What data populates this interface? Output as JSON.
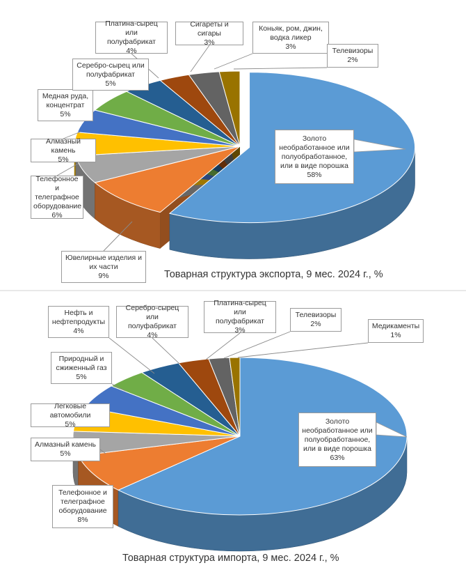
{
  "chart_data": [
    {
      "type": "pie",
      "title": "Товарная структура экспорта, 9 мес. 2024 г., %",
      "categories": [
        "Золото необработанное или полуобработанное, или в виде порошка",
        "Ювелирные изделия и их части",
        "Телефонное и телеграфное оборудование",
        "Алмазный камень",
        "Медная руда, концентрат",
        "Серебро-сырец или полуфабрикат",
        "Платина-сырец или полуфабрикат",
        "Сигареты и сигары",
        "Коньяк, ром, джин, водка ликер",
        "Телевизоры"
      ],
      "values": [
        58,
        9,
        6,
        5,
        5,
        5,
        4,
        3,
        3,
        2
      ],
      "labels": [
        {
          "lines": [
            "Золото",
            "необработанное или",
            "полуобработанное,",
            "или в виде порошка"
          ],
          "pct": "58%"
        },
        {
          "lines": [
            "Ювелирные изделия и",
            "их части"
          ],
          "pct": "9%"
        },
        {
          "lines": [
            "Телефонное и",
            "телеграфное",
            "оборудование"
          ],
          "pct": "6%"
        },
        {
          "lines": [
            "Алмазный камень"
          ],
          "pct": "5%"
        },
        {
          "lines": [
            "Медная руда,",
            "концентрат"
          ],
          "pct": "5%"
        },
        {
          "lines": [
            "Серебро-сырец или",
            "полуфабрикат"
          ],
          "pct": "5%"
        },
        {
          "lines": [
            "Платина-сырец или",
            "полуфабрикат"
          ],
          "pct": "4%"
        },
        {
          "lines": [
            "Сигареты и сигары"
          ],
          "pct": "3%"
        },
        {
          "lines": [
            "Коньяк, ром, джин,",
            "водка ликер"
          ],
          "pct": "3%"
        },
        {
          "lines": [
            "Телевизоры"
          ],
          "pct": "2%"
        }
      ],
      "colors": [
        "#5b9bd5",
        "#ed7d31",
        "#a5a5a5",
        "#ffc000",
        "#4472c4",
        "#70ad47",
        "#255e91",
        "#9e480e",
        "#636363",
        "#997300"
      ],
      "legend": "none"
    },
    {
      "type": "pie",
      "title": "Товарная структура импорта, 9 мес. 2024 г., %",
      "categories": [
        "Золото необработанное или полуобработанное, или в виде порошка",
        "Телефонное и телеграфное оборудование",
        "Алмазный камень",
        "Легковые автомобили",
        "Природный и сжиженный газ",
        "Нефть и нефтепродукты",
        "Серебро-сырец или полуфабрикат",
        "Платина-сырец или полуфабрикат",
        "Телевизоры",
        "Медикаменты"
      ],
      "values": [
        63,
        8,
        5,
        5,
        5,
        4,
        4,
        3,
        2,
        1
      ],
      "labels": [
        {
          "lines": [
            "Золото",
            "необработанное или",
            "полуобработанное,",
            "или в виде порошка"
          ],
          "pct": "63%"
        },
        {
          "lines": [
            "Телефонное и",
            "телеграфное",
            "оборудование"
          ],
          "pct": "8%"
        },
        {
          "lines": [
            "Алмазный камень"
          ],
          "pct": "5%"
        },
        {
          "lines": [
            "Легковые автомобили"
          ],
          "pct": "5%"
        },
        {
          "lines": [
            "Природный и",
            "сжиженный газ"
          ],
          "pct": "5%"
        },
        {
          "lines": [
            "Нефть и",
            "нефтепродукты"
          ],
          "pct": "4%"
        },
        {
          "lines": [
            "Серебро-сырец или",
            "полуфабрикат"
          ],
          "pct": "4%"
        },
        {
          "lines": [
            "Платина-сырец или",
            "полуфабрикат"
          ],
          "pct": "3%"
        },
        {
          "lines": [
            "Телевизоры"
          ],
          "pct": "2%"
        },
        {
          "lines": [
            "Медикаменты"
          ],
          "pct": "1%"
        }
      ],
      "colors": [
        "#5b9bd5",
        "#ed7d31",
        "#a5a5a5",
        "#ffc000",
        "#4472c4",
        "#70ad47",
        "#255e91",
        "#9e480e",
        "#636363",
        "#997300"
      ],
      "legend": "none"
    }
  ]
}
